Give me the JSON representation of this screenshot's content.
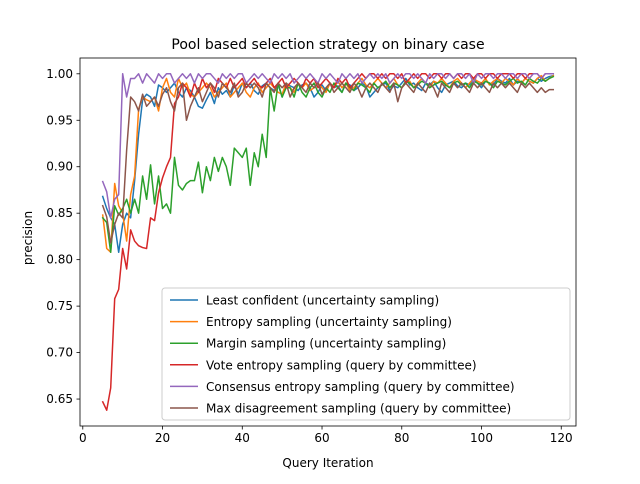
{
  "chart_data": {
    "type": "line",
    "title": "Pool based selection strategy on binary case",
    "xlabel": "Query Iteration",
    "ylabel": "precision",
    "xlim": [
      -0.7,
      123.7
    ],
    "ylim": [
      0.621,
      1.017
    ],
    "x_ticks": [
      0,
      20,
      40,
      60,
      80,
      100,
      120
    ],
    "y_ticks": [
      0.65,
      0.7,
      0.75,
      0.8,
      0.85,
      0.9,
      0.95,
      1.0
    ],
    "x_tick_labels": [
      "0",
      "20",
      "40",
      "60",
      "80",
      "100",
      "120"
    ],
    "y_tick_labels": [
      "0.65",
      "0.70",
      "0.75",
      "0.80",
      "0.85",
      "0.90",
      "0.95",
      "1.00"
    ],
    "grid": false,
    "legend_position": "lower-right",
    "x": [
      5,
      6,
      7,
      8,
      9,
      10,
      11,
      12,
      13,
      14,
      15,
      16,
      17,
      18,
      19,
      20,
      21,
      22,
      23,
      24,
      25,
      26,
      27,
      28,
      29,
      30,
      31,
      32,
      33,
      34,
      35,
      36,
      37,
      38,
      39,
      40,
      41,
      42,
      43,
      44,
      45,
      46,
      47,
      48,
      49,
      50,
      51,
      52,
      53,
      54,
      55,
      56,
      57,
      58,
      59,
      60,
      61,
      62,
      63,
      64,
      65,
      66,
      67,
      68,
      69,
      70,
      71,
      72,
      73,
      74,
      75,
      76,
      77,
      78,
      79,
      80,
      81,
      82,
      83,
      84,
      85,
      86,
      87,
      88,
      89,
      90,
      91,
      92,
      93,
      94,
      95,
      96,
      97,
      98,
      99,
      100,
      101,
      102,
      103,
      104,
      105,
      106,
      107,
      108,
      109,
      110,
      111,
      112,
      113,
      114,
      115,
      116,
      117,
      118
    ],
    "series": [
      {
        "name": "Least confident (uncertainty sampling)",
        "color": "#1f77b4",
        "values": [
          0.868,
          0.855,
          0.845,
          0.838,
          0.808,
          0.838,
          0.85,
          0.845,
          0.885,
          0.935,
          0.972,
          0.978,
          0.975,
          0.965,
          0.988,
          0.985,
          0.98,
          0.985,
          0.99,
          0.98,
          0.975,
          0.985,
          0.982,
          0.975,
          0.965,
          0.963,
          0.972,
          0.98,
          0.968,
          0.985,
          0.978,
          0.982,
          0.975,
          0.988,
          0.978,
          0.99,
          0.985,
          0.99,
          0.982,
          0.978,
          0.987,
          0.99,
          0.985,
          0.982,
          0.988,
          0.975,
          0.99,
          0.987,
          0.985,
          0.982,
          0.988,
          0.99,
          0.985,
          0.975,
          0.98,
          0.988,
          0.982,
          0.99,
          0.985,
          0.987,
          0.98,
          0.99,
          0.988,
          0.982,
          0.985,
          0.99,
          0.987,
          0.975,
          0.98,
          0.985,
          0.988,
          0.99,
          0.982,
          0.987,
          0.985,
          0.99,
          0.995,
          0.988,
          0.99,
          0.985,
          0.982,
          0.99,
          0.988,
          0.992,
          0.985,
          0.98,
          0.988,
          0.99,
          0.992,
          0.987,
          0.985,
          0.99,
          0.988,
          0.995,
          0.99,
          0.985,
          0.992,
          0.99,
          0.988,
          0.995,
          0.992,
          0.99,
          0.995,
          0.988,
          0.992,
          0.99,
          0.995,
          0.992,
          0.99,
          0.995,
          0.992,
          0.995,
          0.997,
          0.998
        ]
      },
      {
        "name": "Entropy sampling (uncertainty sampling)",
        "color": "#ff7f0e",
        "values": [
          0.848,
          0.812,
          0.808,
          0.882,
          0.858,
          0.85,
          0.82,
          0.87,
          0.89,
          0.962,
          0.975,
          0.972,
          0.97,
          0.975,
          0.96,
          0.985,
          0.995,
          0.98,
          0.975,
          0.995,
          0.985,
          0.99,
          0.978,
          0.975,
          0.98,
          0.985,
          0.99,
          0.985,
          0.975,
          0.98,
          0.985,
          0.99,
          0.975,
          0.98,
          0.985,
          0.99,
          0.98,
          0.975,
          0.985,
          0.99,
          0.98,
          0.985,
          0.99,
          0.985,
          0.98,
          0.978,
          0.99,
          0.985,
          0.98,
          0.99,
          0.985,
          0.99,
          0.982,
          0.985,
          0.99,
          0.985,
          0.98,
          0.99,
          0.985,
          0.992,
          0.985,
          0.99,
          0.982,
          0.985,
          0.99,
          0.995,
          0.988,
          0.985,
          0.99,
          0.995,
          0.99,
          0.985,
          0.99,
          0.995,
          0.988,
          0.985,
          0.99,
          0.992,
          0.985,
          0.99,
          0.995,
          0.99,
          0.985,
          0.992,
          0.99,
          0.995,
          0.99,
          0.985,
          0.992,
          0.995,
          0.99,
          0.985,
          0.99,
          0.995,
          0.992,
          0.99,
          0.995,
          0.988,
          0.992,
          0.995,
          0.99,
          0.995,
          0.992,
          0.988,
          0.995,
          0.99,
          0.995,
          0.992,
          0.99,
          0.995,
          0.998,
          0.992,
          0.995,
          0.998
        ]
      },
      {
        "name": "Margin sampling (uncertainty sampling)",
        "color": "#2ca02c",
        "values": [
          0.845,
          0.84,
          0.808,
          0.858,
          0.848,
          0.855,
          0.865,
          0.85,
          0.865,
          0.85,
          0.89,
          0.865,
          0.902,
          0.86,
          0.89,
          0.855,
          0.86,
          0.85,
          0.91,
          0.88,
          0.875,
          0.882,
          0.885,
          0.885,
          0.905,
          0.872,
          0.9,
          0.885,
          0.91,
          0.895,
          0.91,
          0.9,
          0.88,
          0.92,
          0.915,
          0.91,
          0.92,
          0.88,
          0.915,
          0.9,
          0.935,
          0.91,
          0.985,
          0.96,
          0.99,
          0.975,
          0.985,
          0.985,
          0.975,
          0.99,
          0.98,
          0.975,
          0.985,
          0.99,
          0.98,
          0.975,
          0.985,
          0.98,
          0.99,
          0.985,
          0.98,
          0.99,
          0.985,
          0.982,
          0.99,
          0.988,
          0.985,
          0.98,
          0.99,
          0.985,
          0.988,
          0.992,
          0.985,
          0.99,
          0.988,
          0.985,
          0.992,
          0.99,
          0.985,
          0.988,
          0.992,
          0.99,
          0.985,
          0.988,
          0.99,
          0.992,
          0.988,
          0.985,
          0.99,
          0.992,
          0.988,
          0.99,
          0.985,
          0.992,
          0.99,
          0.988,
          0.992,
          0.99,
          0.985,
          0.992,
          0.99,
          0.988,
          0.992,
          0.995,
          0.99,
          0.992,
          0.988,
          0.995,
          0.992,
          0.99,
          0.995,
          0.992,
          0.995,
          0.997
        ]
      },
      {
        "name": "Vote entropy sampling (query by committee)",
        "color": "#d62728",
        "values": [
          0.647,
          0.638,
          0.662,
          0.758,
          0.768,
          0.812,
          0.79,
          0.832,
          0.82,
          0.815,
          0.813,
          0.812,
          0.845,
          0.842,
          0.872,
          0.888,
          0.9,
          0.91,
          0.968,
          0.975,
          0.99,
          0.985,
          0.975,
          0.99,
          0.98,
          0.995,
          0.985,
          0.99,
          0.98,
          0.995,
          0.99,
          0.985,
          0.995,
          0.985,
          0.99,
          0.995,
          0.985,
          0.99,
          0.995,
          0.988,
          0.985,
          0.99,
          0.995,
          0.985,
          0.99,
          0.995,
          0.985,
          0.99,
          0.995,
          0.99,
          0.985,
          0.995,
          0.99,
          0.995,
          0.985,
          0.99,
          0.995,
          0.99,
          0.985,
          0.995,
          0.99,
          0.995,
          0.985,
          0.99,
          0.995,
          1.0,
          0.995,
          1.0,
          1.0,
          0.995,
          1.0,
          0.995,
          1.0,
          1.0,
          0.995,
          1.0,
          0.99,
          0.995,
          1.0,
          0.995,
          1.0,
          1.0,
          0.995,
          1.0,
          1.0,
          0.995,
          1.0,
          1.0,
          0.995,
          1.0,
          0.995,
          1.0,
          1.0,
          0.995,
          1.0,
          1.0,
          0.995,
          1.0,
          1.0,
          0.995,
          1.0,
          1.0,
          1.0,
          0.995,
          1.0,
          1.0,
          0.995,
          1.0,
          1.0,
          1.0,
          0.995,
          1.0,
          1.0,
          1.0
        ]
      },
      {
        "name": "Consensus entropy sampling (query by committee)",
        "color": "#9467bd",
        "values": [
          0.884,
          0.873,
          0.845,
          0.865,
          0.87,
          1.0,
          0.975,
          0.995,
          0.995,
          1.0,
          0.99,
          1.0,
          0.995,
          0.99,
          1.0,
          0.995,
          1.0,
          1.0,
          0.99,
          0.995,
          1.0,
          0.995,
          1.0,
          0.99,
          1.0,
          0.995,
          1.0,
          1.0,
          0.995,
          0.99,
          1.0,
          0.995,
          1.0,
          0.995,
          1.0,
          1.0,
          0.99,
          0.995,
          1.0,
          0.995,
          1.0,
          0.995,
          0.99,
          1.0,
          0.995,
          1.0,
          0.995,
          1.0,
          0.99,
          0.995,
          1.0,
          0.995,
          1.0,
          0.995,
          0.99,
          1.0,
          0.995,
          1.0,
          0.995,
          0.99,
          1.0,
          0.995,
          1.0,
          0.995,
          1.0,
          0.99,
          0.995,
          1.0,
          0.995,
          1.0,
          0.995,
          1.0,
          0.99,
          0.995,
          1.0,
          0.995,
          1.0,
          1.0,
          0.995,
          1.0,
          0.995,
          0.99,
          1.0,
          0.995,
          1.0,
          1.0,
          0.995,
          1.0,
          0.995,
          1.0,
          1.0,
          0.995,
          1.0,
          0.99,
          1.0,
          0.995,
          1.0,
          1.0,
          0.995,
          1.0,
          1.0,
          0.995,
          1.0,
          1.0,
          0.995,
          1.0,
          1.0,
          0.995,
          1.0,
          1.0,
          0.995,
          1.0,
          1.0,
          1.0
        ]
      },
      {
        "name": "Max disagreement sampling (query by committee)",
        "color": "#8c564b",
        "values": [
          0.858,
          0.846,
          0.818,
          0.838,
          0.85,
          0.845,
          0.918,
          0.975,
          0.97,
          0.96,
          0.978,
          0.965,
          0.97,
          0.975,
          0.965,
          0.978,
          0.985,
          0.97,
          0.96,
          0.985,
          0.99,
          0.95,
          0.965,
          0.975,
          0.985,
          0.97,
          0.98,
          0.99,
          0.985,
          0.975,
          0.99,
          0.985,
          0.98,
          0.99,
          0.975,
          0.98,
          0.99,
          0.985,
          0.99,
          0.985,
          0.975,
          0.99,
          0.985,
          0.98,
          0.99,
          0.985,
          0.99,
          0.975,
          0.985,
          0.99,
          0.985,
          0.98,
          0.99,
          0.985,
          0.99,
          0.978,
          0.985,
          0.99,
          0.98,
          0.985,
          0.99,
          0.985,
          0.98,
          0.99,
          0.985,
          0.975,
          0.985,
          0.99,
          0.985,
          0.98,
          0.99,
          0.985,
          0.98,
          0.99,
          0.97,
          0.985,
          0.99,
          0.985,
          0.98,
          0.99,
          0.985,
          0.98,
          0.99,
          0.985,
          0.975,
          0.99,
          0.985,
          0.98,
          0.99,
          0.985,
          0.99,
          0.985,
          0.98,
          0.99,
          0.985,
          0.99,
          0.985,
          0.98,
          0.99,
          0.985,
          0.99,
          0.985,
          0.99,
          0.985,
          0.98,
          0.99,
          0.985,
          0.99,
          0.985,
          0.98,
          0.985,
          0.98,
          0.983,
          0.983
        ]
      }
    ]
  }
}
